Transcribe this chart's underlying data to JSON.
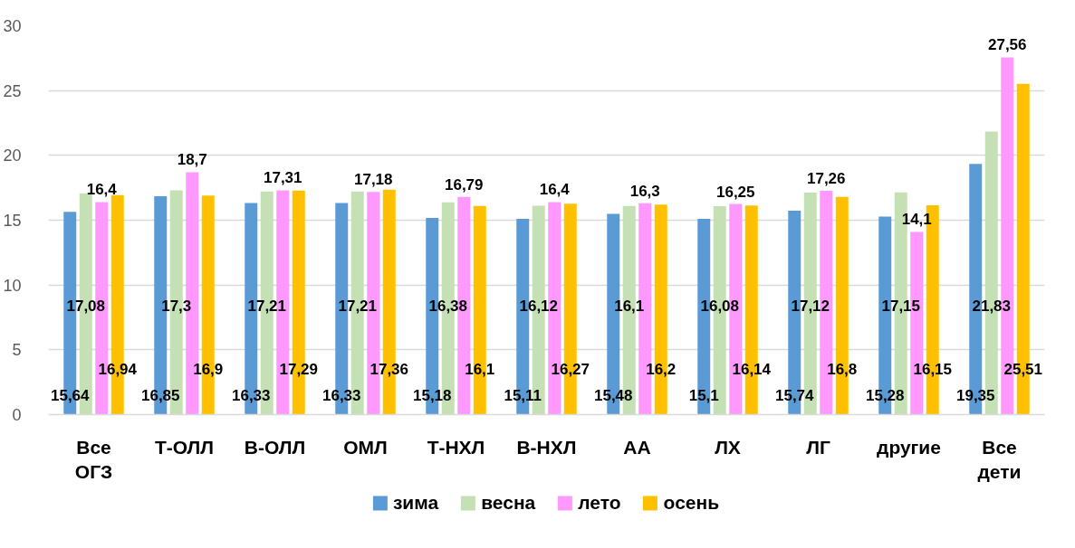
{
  "chart_data": {
    "type": "bar",
    "categories": [
      "Все ОГЗ",
      "Т-ОЛЛ",
      "В-ОЛЛ",
      "ОМЛ",
      "Т-НХЛ",
      "В-НХЛ",
      "АА",
      "ЛХ",
      "ЛГ",
      "другие",
      "Все дети"
    ],
    "series": [
      {
        "name": "зима",
        "color": "#5b9bd5",
        "values": [
          15.64,
          16.85,
          16.33,
          16.33,
          15.18,
          15.11,
          15.48,
          15.1,
          15.74,
          15.28,
          19.35
        ],
        "value_labels": [
          "15,64",
          "16,85",
          "16,33",
          "16,33",
          "15,18",
          "15,11",
          "15,48",
          "15,1",
          "15,74",
          "15,28",
          "19,35"
        ]
      },
      {
        "name": "весна",
        "color": "#c5e0b4",
        "values": [
          17.08,
          17.3,
          17.21,
          17.21,
          16.38,
          16.12,
          16.1,
          16.08,
          17.12,
          17.15,
          21.83
        ],
        "value_labels": [
          "17,08",
          "17,3",
          "17,21",
          "17,21",
          "16,38",
          "16,12",
          "16,1",
          "16,08",
          "17,12",
          "17,15",
          "21,83"
        ]
      },
      {
        "name": "лето",
        "color": "#ff99ff",
        "values": [
          16.4,
          18.7,
          17.31,
          17.18,
          16.79,
          16.4,
          16.3,
          16.25,
          17.26,
          14.1,
          27.56
        ],
        "value_labels": [
          "16,4",
          "18,7",
          "17,31",
          "17,18",
          "16,79",
          "16,4",
          "16,3",
          "16,25",
          "17,26",
          "14,1",
          "27,56"
        ]
      },
      {
        "name": "осень",
        "color": "#ffc000",
        "values": [
          16.94,
          16.9,
          17.29,
          17.36,
          16.1,
          16.27,
          16.2,
          16.14,
          16.8,
          16.15,
          25.51
        ],
        "value_labels": [
          "16,94",
          "16,9",
          "17,29",
          "17,36",
          "16,1",
          "16,27",
          "16,2",
          "16,14",
          "16,8",
          "16,15",
          "25,51"
        ]
      }
    ],
    "ylim": [
      0,
      30
    ],
    "yticks": [
      0,
      5,
      10,
      15,
      20,
      25,
      30
    ],
    "grid": "y",
    "legend": "bottom"
  }
}
